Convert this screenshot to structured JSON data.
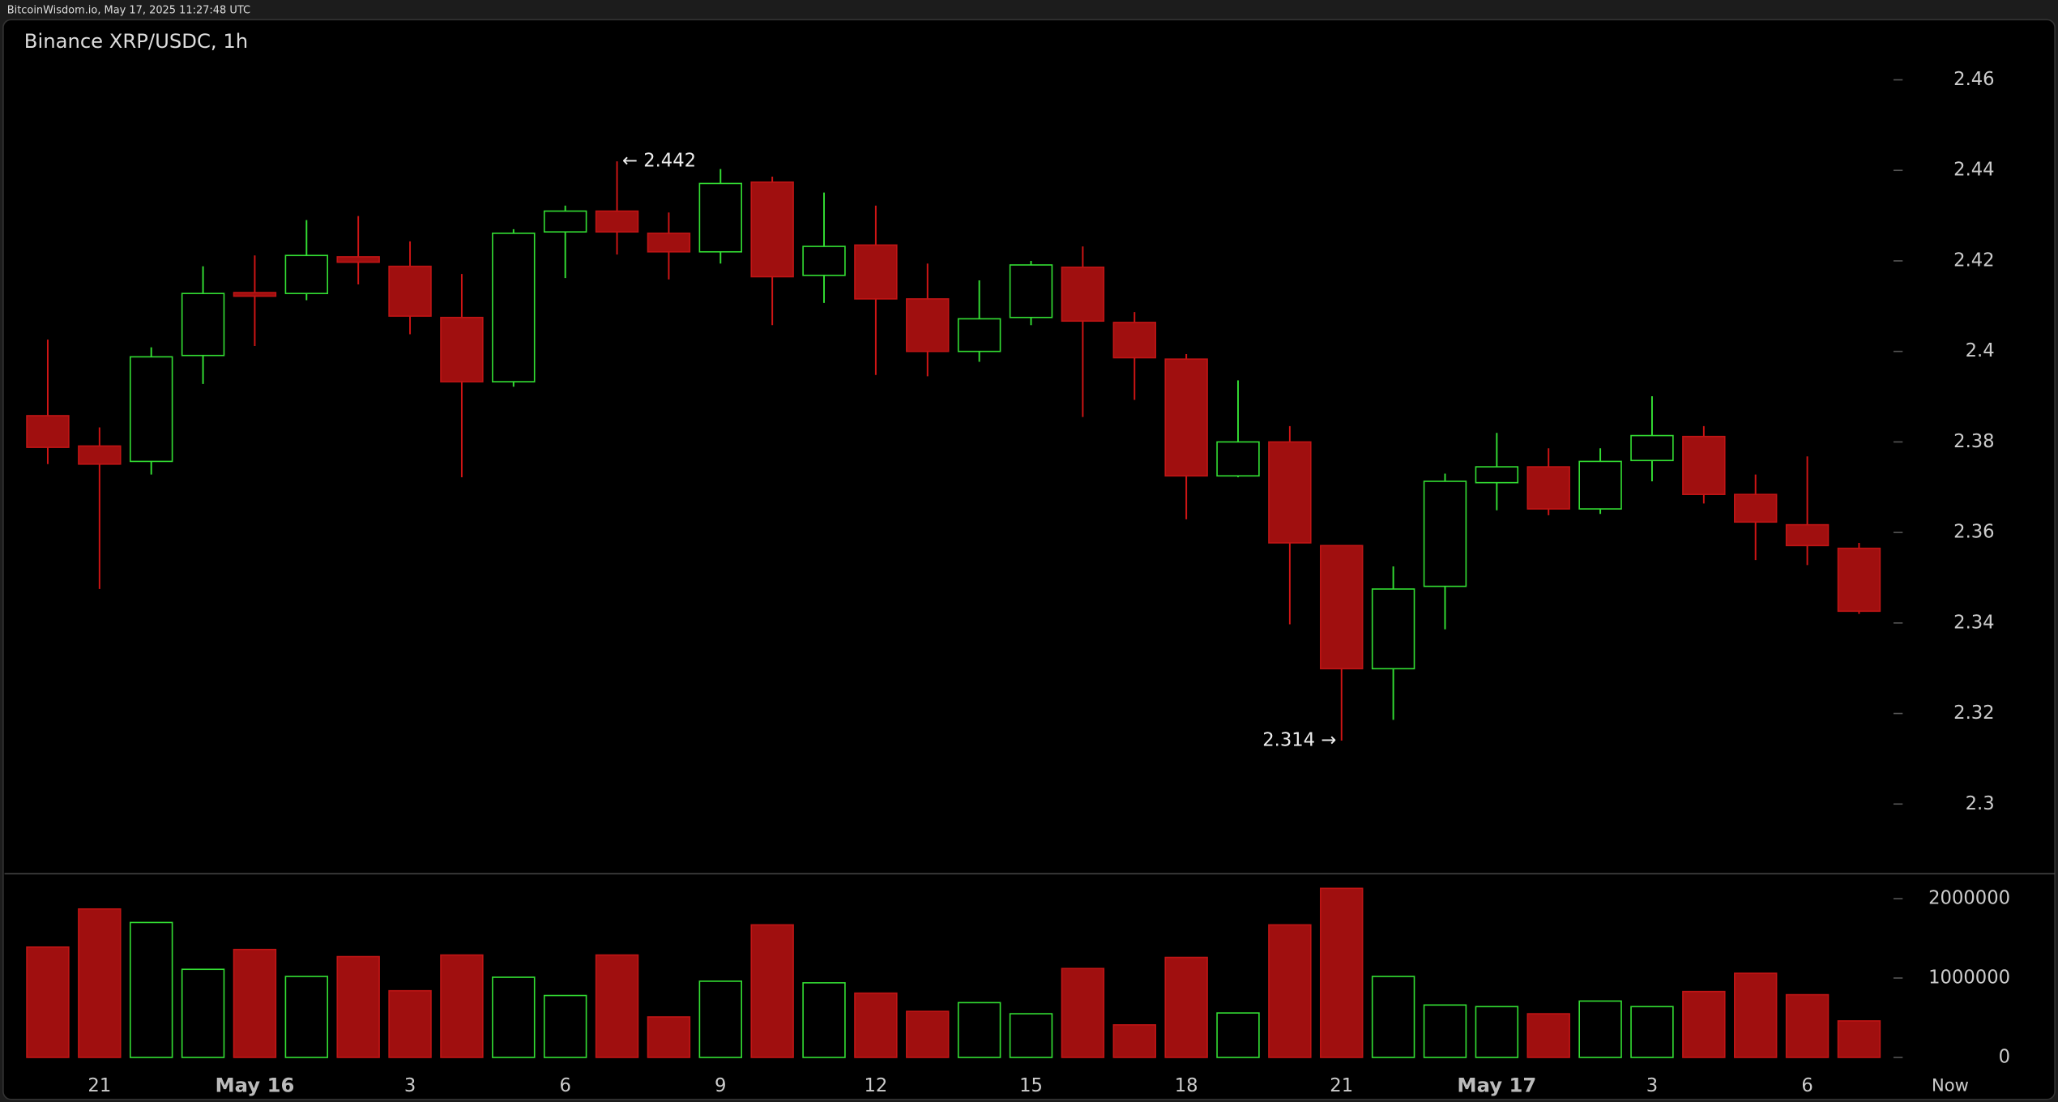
{
  "header": {
    "text": "BitcoinWisdom.io, May 17, 2025 11:27:48 UTC"
  },
  "chart_data": {
    "type": "candlestick",
    "title": "Binance XRP/USDC, 1h",
    "categories": [
      null,
      "21",
      null,
      null,
      "May 16",
      null,
      null,
      "3",
      null,
      null,
      "6",
      null,
      null,
      "9",
      null,
      null,
      "12",
      null,
      null,
      "15",
      null,
      null,
      "18",
      null,
      null,
      "21",
      null,
      null,
      "May 17",
      null,
      null,
      "3",
      null,
      null,
      "6",
      null
    ],
    "end_label": "Now",
    "open": [
      2.3858,
      2.3791,
      2.3757,
      2.3991,
      2.413,
      2.4128,
      2.4209,
      2.4188,
      2.4075,
      2.3933,
      2.4264,
      2.431,
      2.4261,
      2.422,
      2.4374,
      2.4168,
      2.4235,
      2.4116,
      2.4,
      2.4075,
      2.4186,
      2.4064,
      2.3983,
      2.3725,
      2.38,
      2.3571,
      2.3299,
      2.3481,
      2.371,
      2.3745,
      2.3652,
      2.3759,
      2.3812,
      2.3684,
      2.3617,
      2.3565
    ],
    "high": [
      2.4026,
      2.3832,
      2.4009,
      2.4188,
      2.4212,
      2.429,
      2.4299,
      2.4243,
      2.4171,
      2.427,
      2.4322,
      2.442,
      2.4307,
      2.4403,
      2.4386,
      2.4351,
      2.4322,
      2.4194,
      2.4157,
      2.42,
      2.4232,
      2.4087,
      2.3994,
      2.3936,
      2.3835,
      2.3571,
      2.3525,
      2.373,
      2.382,
      2.3786,
      2.3786,
      2.3901,
      2.3835,
      2.3728,
      2.3768,
      2.3577
    ],
    "low": [
      2.3751,
      2.3475,
      2.3728,
      2.3928,
      2.4012,
      2.4113,
      2.4148,
      2.4038,
      2.3722,
      2.3922,
      2.4162,
      2.4214,
      2.4159,
      2.4194,
      2.4058,
      2.4107,
      2.3948,
      2.3945,
      2.3977,
      2.4058,
      2.3855,
      2.3893,
      2.3629,
      2.3722,
      2.3397,
      2.314,
      2.3186,
      2.3386,
      2.3649,
      2.3638,
      2.3641,
      2.3713,
      2.3664,
      2.3539,
      2.3528,
      2.342
    ],
    "close": [
      2.3788,
      2.3751,
      2.3988,
      2.4128,
      2.4122,
      2.4212,
      2.4197,
      2.4078,
      2.3933,
      2.4261,
      2.431,
      2.4264,
      2.422,
      2.4371,
      2.4165,
      2.4232,
      2.4116,
      2.4,
      2.4072,
      2.4191,
      2.4067,
      2.3986,
      2.3725,
      2.38,
      2.3577,
      2.3299,
      2.3475,
      2.3713,
      2.3745,
      2.3652,
      2.3757,
      2.3814,
      2.3684,
      2.3623,
      2.3571,
      2.3426
    ],
    "volume": [
      1390000,
      1870000,
      1700000,
      1110000,
      1360000,
      1020000,
      1270000,
      840000,
      1290000,
      1010000,
      780000,
      1290000,
      510000,
      960000,
      1670000,
      940000,
      810000,
      580000,
      690000,
      550000,
      1120000,
      410000,
      1260000,
      560000,
      1670000,
      2130000,
      1020000,
      660000,
      640000,
      550000,
      710000,
      640000,
      830000,
      1060000,
      790000,
      460000
    ],
    "up_color": "#33dd33",
    "down_color": "#a00f0f",
    "ylim": [
      2.2846,
      2.473
    ],
    "yticks": [
      2.3,
      2.32,
      2.34,
      2.36,
      2.38,
      2.4,
      2.42,
      2.44,
      2.46
    ],
    "volume_ylim": [
      -165000,
      2314000
    ],
    "volume_ticks": [
      0,
      1000000,
      2000000
    ],
    "annotations": [
      {
        "value": 2.442,
        "label": "← 2.442",
        "at": "high"
      },
      {
        "value": 2.314,
        "label": "2.314 →",
        "at": "low"
      }
    ]
  }
}
